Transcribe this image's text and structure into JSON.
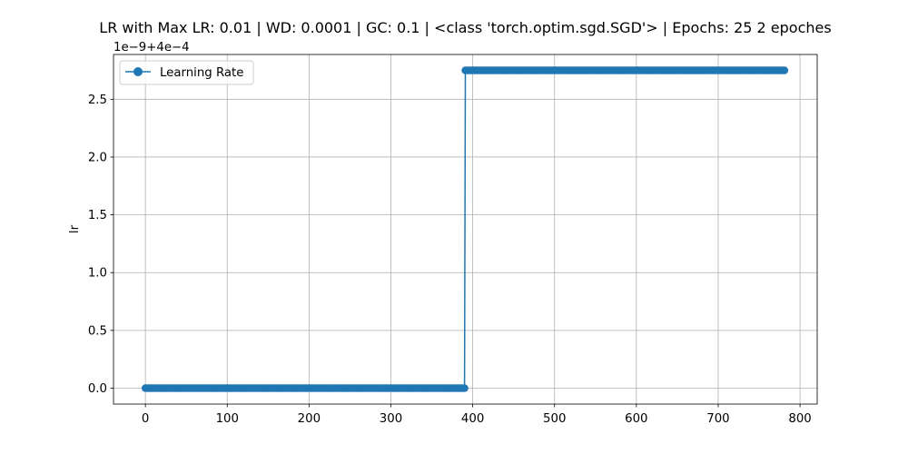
{
  "chart_data": {
    "type": "line",
    "title": "LR with Max LR: 0.01 | WD: 0.0001 | GC: 0.1 | <class 'torch.optim.sgd.SGD'> | Epochs: 25 2 epoches",
    "xlabel": "",
    "ylabel": "lr",
    "offset_text": "1e−9+4e−4",
    "xlim": [
      -39,
      821
    ],
    "ylim": [
      -0.1375,
      2.8875
    ],
    "x_ticks": [
      0,
      100,
      200,
      300,
      400,
      500,
      600,
      700,
      800
    ],
    "x_tick_labels": [
      "0",
      "100",
      "200",
      "300",
      "400",
      "500",
      "600",
      "700",
      "800"
    ],
    "y_ticks": [
      0.0,
      0.5,
      1.0,
      1.5,
      2.0,
      2.5
    ],
    "y_tick_labels": [
      "0.0",
      "0.5",
      "1.0",
      "1.5",
      "2.0",
      "2.5"
    ],
    "grid": true,
    "legend_position": "upper-left",
    "series": [
      {
        "name": "Learning Rate",
        "color": "#1f77b4",
        "marker": "circle",
        "segments": [
          {
            "x_start": 0,
            "x_end": 390,
            "step": 2,
            "y": 0.0
          },
          {
            "x_start": 391,
            "x_end": 781,
            "step": 2,
            "y": 2.75
          }
        ]
      }
    ]
  }
}
